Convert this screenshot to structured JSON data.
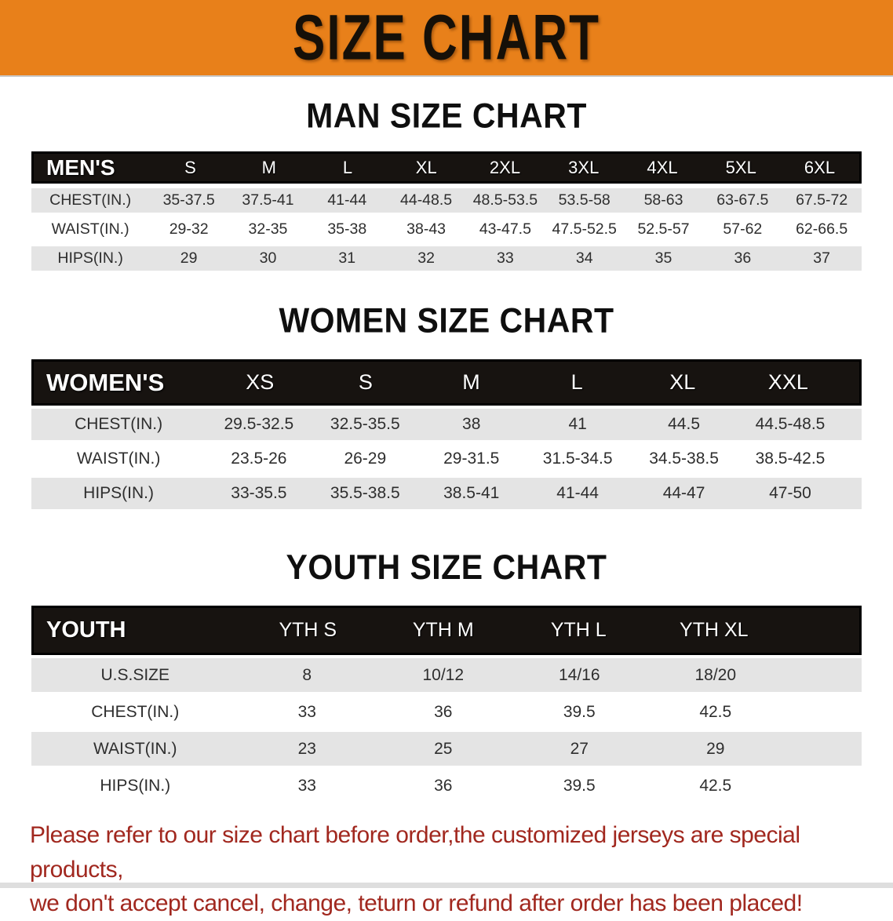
{
  "banner": {
    "title": "SIZE CHART"
  },
  "colors": {
    "banner_bg": "#e8801a",
    "banner_text": "#161008",
    "header_bg": "#171310",
    "header_text": "#ffffff",
    "stripe": "#e4e4e4",
    "body_text": "#2e2e2e",
    "title_text": "#0f0f0f",
    "footer_text": "#a1281f"
  },
  "sections": {
    "men": {
      "title": "MAN SIZE CHART",
      "table": {
        "label": "MEN'S",
        "columns": [
          "S",
          "M",
          "L",
          "XL",
          "2XL",
          "3XL",
          "4XL",
          "5XL",
          "6XL"
        ],
        "rows": [
          {
            "label": "CHEST(IN.)",
            "values": [
              "35-37.5",
              "37.5-41",
              "41-44",
              "44-48.5",
              "48.5-53.5",
              "53.5-58",
              "58-63",
              "63-67.5",
              "67.5-72"
            ]
          },
          {
            "label": "WAIST(IN.)",
            "values": [
              "29-32",
              "32-35",
              "35-38",
              "38-43",
              "43-47.5",
              "47.5-52.5",
              "52.5-57",
              "57-62",
              "62-66.5"
            ]
          },
          {
            "label": "HIPS(IN.)",
            "values": [
              "29",
              "30",
              "31",
              "32",
              "33",
              "34",
              "35",
              "36",
              "37"
            ]
          }
        ]
      }
    },
    "women": {
      "title": "WOMEN SIZE CHART",
      "table": {
        "label": "WOMEN'S",
        "columns": [
          "XS",
          "S",
          "M",
          "L",
          "XL",
          "XXL"
        ],
        "rows": [
          {
            "label": "CHEST(IN.)",
            "values": [
              "29.5-32.5",
              "32.5-35.5",
              "38",
              "41",
              "44.5",
              "44.5-48.5"
            ]
          },
          {
            "label": "WAIST(IN.)",
            "values": [
              "23.5-26",
              "26-29",
              "29-31.5",
              "31.5-34.5",
              "34.5-38.5",
              "38.5-42.5"
            ]
          },
          {
            "label": "HIPS(IN.)",
            "values": [
              "33-35.5",
              "35.5-38.5",
              "38.5-41",
              "41-44",
              "44-47",
              "47-50"
            ]
          }
        ]
      }
    },
    "youth": {
      "title": "YOUTH SIZE CHART",
      "table": {
        "label": "YOUTH",
        "columns": [
          "YTH S",
          "YTH M",
          "YTH L",
          "YTH XL"
        ],
        "rows": [
          {
            "label": "U.S.SIZE",
            "values": [
              "8",
              "10/12",
              "14/16",
              "18/20"
            ]
          },
          {
            "label": "CHEST(IN.)",
            "values": [
              "33",
              "36",
              "39.5",
              "42.5"
            ]
          },
          {
            "label": "WAIST(IN.)",
            "values": [
              "23",
              "25",
              "27",
              "29"
            ]
          },
          {
            "label": "HIPS(IN.)",
            "values": [
              "33",
              "36",
              "39.5",
              "42.5"
            ]
          }
        ]
      }
    }
  },
  "footer": {
    "lines": [
      "Please refer to our size chart before order,the customized jerseys are special products,",
      "we don't accept cancel, change, teturn or refund after order has been placed!"
    ]
  }
}
